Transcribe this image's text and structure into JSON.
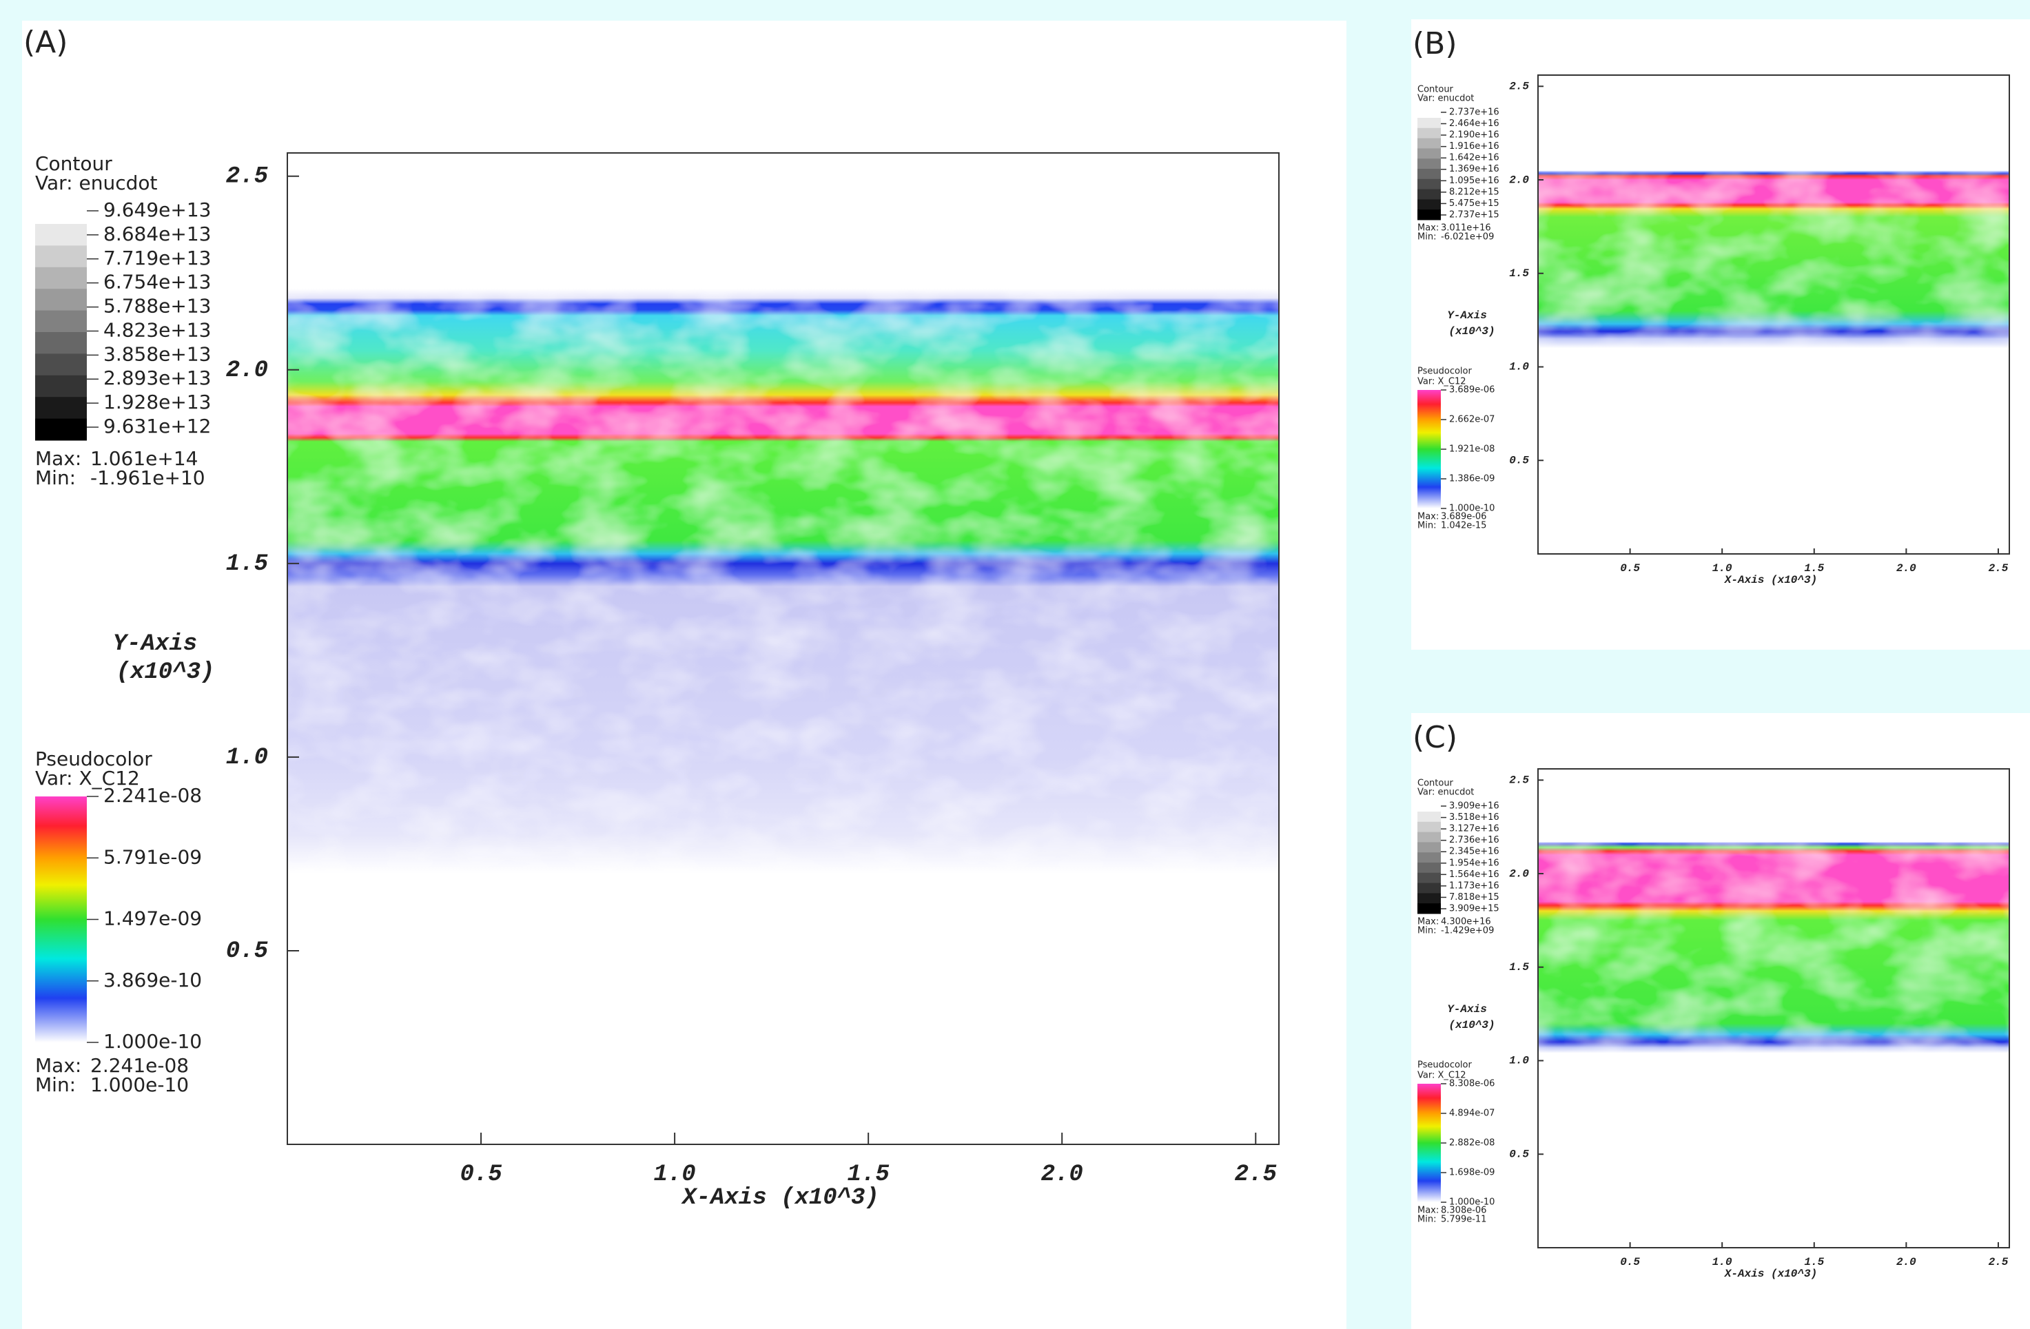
{
  "chart_data": [
    {
      "type": "pseudocolor",
      "panel_label": "(A)",
      "xlim": [
        0,
        2.56
      ],
      "ylim": [
        0,
        2.56
      ],
      "xticks": [
        0.5,
        {
          "value": 1,
          "label": "1.0"
        },
        1.5,
        {
          "value": 2,
          "label": "2.0"
        },
        2.5
      ],
      "yticks": [
        0.5,
        {
          "value": 1,
          "label": "1.0"
        },
        1.5,
        {
          "value": 2,
          "label": "2.0"
        },
        2.5
      ],
      "x_label": "X-Axis (x10^3)",
      "y_label": "Y-Axis",
      "y_label_unit": "(x10^3)",
      "contour": {
        "title": "Contour",
        "var": "Var: enucdot",
        "levels": [
          {
            "value": 96490000000000.0,
            "label": "9.649e+13"
          },
          {
            "value": 86840000000000.0,
            "label": "8.684e+13"
          },
          {
            "value": 77190000000000.0,
            "label": "7.719e+13"
          },
          {
            "value": 67540000000000.0,
            "label": "6.754e+13"
          },
          {
            "value": 57880000000000.0,
            "label": "5.788e+13"
          },
          {
            "value": 48230000000000.0,
            "label": "4.823e+13"
          },
          {
            "value": 38580000000000.0,
            "label": "3.858e+13"
          },
          {
            "value": 28930000000000.0,
            "label": "2.893e+13"
          },
          {
            "value": 19280000000000.0,
            "label": "1.928e+13"
          },
          {
            "value": 9631000000000.0,
            "label": "9.631e+12"
          }
        ],
        "max_label": "Max:",
        "max": {
          "value": 106100000000000.0,
          "label": "1.061e+14"
        },
        "min_label": "Min:",
        "min": {
          "value": -19610000000.0,
          "label": "-1.961e+10"
        }
      },
      "pseudocolor": {
        "title": "Pseudocolor",
        "var": "Var: X_C12",
        "log": true,
        "ticks": [
          {
            "value": 2.241e-08,
            "label": "2.241e-08"
          },
          {
            "value": 5.791e-09,
            "label": "5.791e-09"
          },
          {
            "value": 1.497e-09,
            "label": "1.497e-09"
          },
          {
            "value": 3.869e-10,
            "label": "3.869e-10"
          },
          {
            "value": 1e-10,
            "label": "1.000e-10"
          }
        ],
        "max_label": "Max:",
        "max": {
          "value": 2.241e-08,
          "label": "2.241e-08"
        },
        "min_label": "Min:",
        "min": {
          "value": 1e-10,
          "label": "1.000e-10"
        }
      }
    },
    {
      "type": "pseudocolor",
      "panel_label": "(B)",
      "xlim": [
        0,
        2.56
      ],
      "ylim": [
        0,
        2.56
      ],
      "xticks": [
        0.5,
        {
          "value": 1,
          "label": "1.0"
        },
        1.5,
        {
          "value": 2,
          "label": "2.0"
        },
        2.5
      ],
      "yticks": [
        0.5,
        {
          "value": 1,
          "label": "1.0"
        },
        1.5,
        {
          "value": 2,
          "label": "2.0"
        },
        2.5
      ],
      "x_label": "X-Axis (x10^3)",
      "y_label": "Y-Axis",
      "y_label_unit": "(x10^3)",
      "contour": {
        "title": "Contour",
        "var": "Var: enucdot",
        "levels": [
          {
            "value": 2.737e+16,
            "label": "2.737e+16"
          },
          {
            "value": 2.464e+16,
            "label": "2.464e+16"
          },
          {
            "value": 2.19e+16,
            "label": "2.190e+16"
          },
          {
            "value": 1.916e+16,
            "label": "1.916e+16"
          },
          {
            "value": 1.642e+16,
            "label": "1.642e+16"
          },
          {
            "value": 1.369e+16,
            "label": "1.369e+16"
          },
          {
            "value": 1.095e+16,
            "label": "1.095e+16"
          },
          {
            "value": 8212000000000000.0,
            "label": "8.212e+15"
          },
          {
            "value": 5475000000000000.0,
            "label": "5.475e+15"
          },
          {
            "value": 2737000000000000.0,
            "label": "2.737e+15"
          }
        ],
        "max_label": "Max:",
        "max": {
          "value": 3.011e+16,
          "label": "3.011e+16"
        },
        "min_label": "Min:",
        "min": {
          "value": -6021000000.0,
          "label": "-6.021e+09"
        }
      },
      "pseudocolor": {
        "title": "Pseudocolor",
        "var": "Var: X_C12",
        "log": true,
        "ticks": [
          {
            "value": 3.689e-06,
            "label": "3.689e-06"
          },
          {
            "value": 2.662e-07,
            "label": "2.662e-07"
          },
          {
            "value": 1.921e-08,
            "label": "1.921e-08"
          },
          {
            "value": 1.386e-09,
            "label": "1.386e-09"
          },
          {
            "value": 1e-10,
            "label": "1.000e-10"
          }
        ],
        "max_label": "Max:",
        "max": {
          "value": 3.689e-06,
          "label": "3.689e-06"
        },
        "min_label": "Min:",
        "min": {
          "value": 1.042e-15,
          "label": "1.042e-15"
        }
      }
    },
    {
      "type": "pseudocolor",
      "panel_label": "(C)",
      "xlim": [
        0,
        2.56
      ],
      "ylim": [
        0,
        2.56
      ],
      "xticks": [
        0.5,
        {
          "value": 1,
          "label": "1.0"
        },
        1.5,
        {
          "value": 2,
          "label": "2.0"
        },
        2.5
      ],
      "yticks": [
        0.5,
        {
          "value": 1,
          "label": "1.0"
        },
        1.5,
        {
          "value": 2,
          "label": "2.0"
        },
        2.5
      ],
      "x_label": "X-Axis (x10^3)",
      "y_label": "Y-Axis",
      "y_label_unit": "(x10^3)",
      "contour": {
        "title": "Contour",
        "var": "Var: enucdot",
        "levels": [
          {
            "value": 3.909e+16,
            "label": "3.909e+16"
          },
          {
            "value": 3.518e+16,
            "label": "3.518e+16"
          },
          {
            "value": 3.127e+16,
            "label": "3.127e+16"
          },
          {
            "value": 2.736e+16,
            "label": "2.736e+16"
          },
          {
            "value": 2.345e+16,
            "label": "2.345e+16"
          },
          {
            "value": 1.954e+16,
            "label": "1.954e+16"
          },
          {
            "value": 1.564e+16,
            "label": "1.564e+16"
          },
          {
            "value": 1.173e+16,
            "label": "1.173e+16"
          },
          {
            "value": 7818000000000000.0,
            "label": "7.818e+15"
          },
          {
            "value": 3909000000000000.0,
            "label": "3.909e+15"
          }
        ],
        "max_label": "Max:",
        "max": {
          "value": 4.3e+16,
          "label": "4.300e+16"
        },
        "min_label": "Min:",
        "min": {
          "value": -1429000000.0,
          "label": "-1.429e+09"
        }
      },
      "pseudocolor": {
        "title": "Pseudocolor",
        "var": "Var: X_C12",
        "log": true,
        "ticks": [
          {
            "value": 8.308e-06,
            "label": "8.308e-06"
          },
          {
            "value": 4.894e-07,
            "label": "4.894e-07"
          },
          {
            "value": 2.882e-08,
            "label": "2.882e-08"
          },
          {
            "value": 1.698e-09,
            "label": "1.698e-09"
          },
          {
            "value": 1e-10,
            "label": "1.000e-10"
          }
        ],
        "max_label": "Max:",
        "max": {
          "value": 8.308e-06,
          "label": "8.308e-06"
        },
        "min_label": "Min:",
        "min": {
          "value": 5.799e-11,
          "label": "5.799e-11"
        }
      }
    }
  ]
}
